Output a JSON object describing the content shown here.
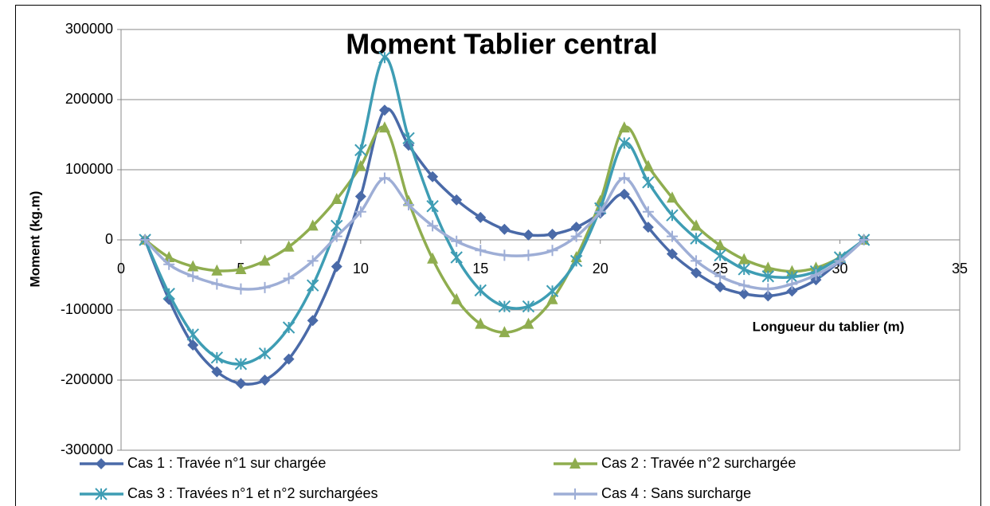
{
  "chart_data": {
    "type": "line",
    "title": "Moment Tablier central",
    "x_label": "Longueur du tablier (m)",
    "y_label": "Moment (kg.m)",
    "x": [
      1,
      2,
      3,
      4,
      5,
      6,
      7,
      8,
      9,
      10,
      11,
      12,
      13,
      14,
      15,
      16,
      17,
      18,
      19,
      20,
      21,
      22,
      23,
      24,
      25,
      26,
      27,
      28,
      29,
      30,
      31
    ],
    "series": [
      {
        "name": "Cas 1 : Travée n°1 sur chargée",
        "color": "#4a6aa8",
        "marker": "diamond",
        "values": [
          0,
          -85000,
          -150000,
          -188000,
          -205000,
          -200000,
          -170000,
          -115000,
          -38000,
          62000,
          185000,
          135000,
          90000,
          57000,
          32000,
          15000,
          7000,
          8000,
          18000,
          38000,
          65000,
          18000,
          -20000,
          -47000,
          -67000,
          -77000,
          -80000,
          -73000,
          -57000,
          -30000,
          0
        ]
      },
      {
        "name": "Cas 2 : Travée n°2 surchargée",
        "color": "#8fad4f",
        "marker": "triangle",
        "values": [
          0,
          -25000,
          -38000,
          -44000,
          -42000,
          -30000,
          -10000,
          20000,
          58000,
          105000,
          160000,
          55000,
          -27000,
          -85000,
          -120000,
          -132000,
          -120000,
          -85000,
          -25000,
          55000,
          160000,
          105000,
          60000,
          20000,
          -8000,
          -28000,
          -40000,
          -45000,
          -40000,
          -25000,
          0
        ]
      },
      {
        "name": "Cas 3 : Travées n°1 et n°2 surchargées",
        "color": "#3e9db4",
        "marker": "star",
        "values": [
          0,
          -77000,
          -135000,
          -168000,
          -177000,
          -162000,
          -125000,
          -65000,
          20000,
          128000,
          260000,
          145000,
          48000,
          -25000,
          -72000,
          -95000,
          -95000,
          -73000,
          -30000,
          45000,
          138000,
          82000,
          35000,
          2000,
          -22000,
          -42000,
          -52000,
          -53000,
          -45000,
          -25000,
          0
        ]
      },
      {
        "name": "Cas 4 : Sans surcharge",
        "color": "#9eaed6",
        "marker": "plus",
        "values": [
          0,
          -35000,
          -52000,
          -63000,
          -70000,
          -68000,
          -55000,
          -30000,
          5000,
          40000,
          88000,
          50000,
          20000,
          -2000,
          -15000,
          -22000,
          -22000,
          -15000,
          5000,
          40000,
          88000,
          40000,
          5000,
          -30000,
          -52000,
          -65000,
          -70000,
          -63000,
          -50000,
          -30000,
          0
        ]
      }
    ],
    "xlim": [
      0,
      35
    ],
    "xticks": [
      0,
      5,
      10,
      15,
      20,
      25,
      30,
      35
    ],
    "ylim": [
      -300000,
      300000
    ],
    "yticks": [
      -300000,
      -200000,
      -100000,
      0,
      100000,
      200000,
      300000
    ],
    "grid": true,
    "legend": "bottom"
  }
}
